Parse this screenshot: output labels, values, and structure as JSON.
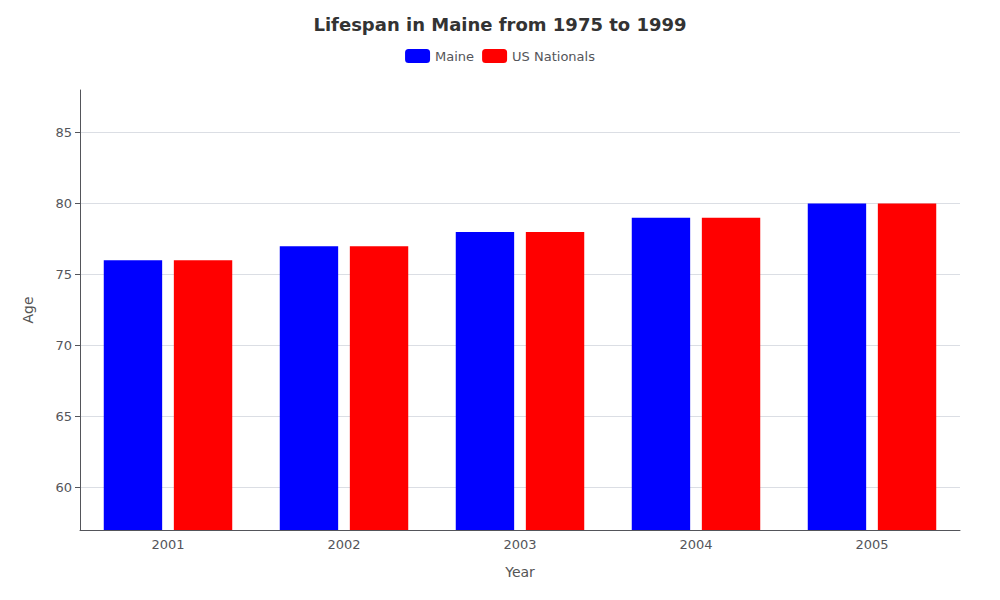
{
  "chart_data": {
    "type": "bar",
    "title": "Lifespan in Maine from 1975 to 1999",
    "xlabel": "Year",
    "ylabel": "Age",
    "categories": [
      "2001",
      "2002",
      "2003",
      "2004",
      "2005"
    ],
    "series": [
      {
        "name": "Maine",
        "color": "#0000ff",
        "values": [
          76,
          77,
          78,
          79,
          80
        ]
      },
      {
        "name": "US Nationals",
        "color": "#ff0000",
        "values": [
          76,
          77,
          78,
          79,
          80
        ]
      }
    ],
    "ylim": [
      57,
      88
    ],
    "yticks": [
      60,
      65,
      70,
      75,
      80,
      85
    ],
    "grid": true,
    "legend": "top"
  }
}
